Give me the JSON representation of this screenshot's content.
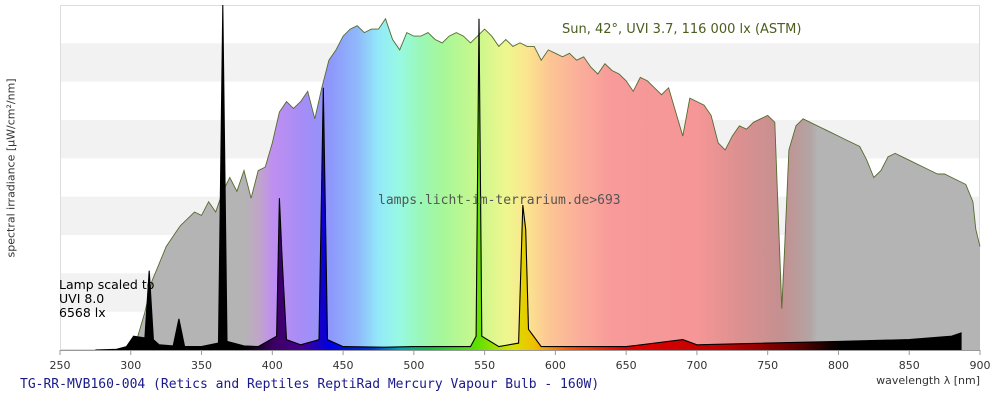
{
  "chart_data": {
    "type": "area",
    "title": "TG-RR-MVB160-004 (Retics and Reptiles ReptiRad Mercury Vapour Bulb - 160W)",
    "xlabel": "wavelength λ [nm]",
    "ylabel": "spectral irradiance [µW/cm²/nm]",
    "xlim": [
      250,
      900
    ],
    "x_ticks": [
      250,
      300,
      350,
      400,
      450,
      500,
      550,
      600,
      650,
      700,
      750,
      800,
      850,
      900
    ],
    "grid": "horizontal alternating bands",
    "sun_label": "Sun, 42°, UVI 3.7, 116 000 lx (ASTM)",
    "watermark": "lamps.licht-im-terrarium.de>693",
    "lamp_scale_note": [
      "Lamp scaled to",
      "UVI 8.0",
      "6568 lx"
    ],
    "series": [
      {
        "name": "Sun, 42°, UVI 3.7, 116 000 lx (ASTM)",
        "color": "#556b2f",
        "points": [
          [
            297,
            0.0
          ],
          [
            300,
            0.004
          ],
          [
            305,
            0.04
          ],
          [
            310,
            0.11
          ],
          [
            315,
            0.2
          ],
          [
            320,
            0.25
          ],
          [
            325,
            0.3
          ],
          [
            330,
            0.33
          ],
          [
            335,
            0.36
          ],
          [
            340,
            0.38
          ],
          [
            345,
            0.4
          ],
          [
            350,
            0.39
          ],
          [
            355,
            0.43
          ],
          [
            360,
            0.4
          ],
          [
            365,
            0.46
          ],
          [
            370,
            0.5
          ],
          [
            375,
            0.46
          ],
          [
            380,
            0.52
          ],
          [
            385,
            0.44
          ],
          [
            390,
            0.52
          ],
          [
            395,
            0.53
          ],
          [
            400,
            0.6
          ],
          [
            405,
            0.69
          ],
          [
            410,
            0.72
          ],
          [
            415,
            0.7
          ],
          [
            420,
            0.72
          ],
          [
            425,
            0.75
          ],
          [
            430,
            0.67
          ],
          [
            435,
            0.76
          ],
          [
            440,
            0.84
          ],
          [
            445,
            0.87
          ],
          [
            450,
            0.91
          ],
          [
            455,
            0.93
          ],
          [
            460,
            0.94
          ],
          [
            465,
            0.92
          ],
          [
            470,
            0.93
          ],
          [
            475,
            0.93
          ],
          [
            480,
            0.96
          ],
          [
            485,
            0.9
          ],
          [
            490,
            0.87
          ],
          [
            495,
            0.92
          ],
          [
            500,
            0.91
          ],
          [
            505,
            0.91
          ],
          [
            510,
            0.92
          ],
          [
            515,
            0.9
          ],
          [
            520,
            0.89
          ],
          [
            525,
            0.91
          ],
          [
            530,
            0.92
          ],
          [
            535,
            0.91
          ],
          [
            540,
            0.89
          ],
          [
            545,
            0.91
          ],
          [
            550,
            0.93
          ],
          [
            555,
            0.91
          ],
          [
            560,
            0.88
          ],
          [
            565,
            0.9
          ],
          [
            570,
            0.88
          ],
          [
            575,
            0.89
          ],
          [
            580,
            0.88
          ],
          [
            585,
            0.88
          ],
          [
            590,
            0.84
          ],
          [
            595,
            0.87
          ],
          [
            600,
            0.86
          ],
          [
            605,
            0.85
          ],
          [
            610,
            0.86
          ],
          [
            615,
            0.84
          ],
          [
            620,
            0.85
          ],
          [
            625,
            0.82
          ],
          [
            630,
            0.8
          ],
          [
            635,
            0.83
          ],
          [
            640,
            0.81
          ],
          [
            645,
            0.8
          ],
          [
            650,
            0.78
          ],
          [
            655,
            0.75
          ],
          [
            660,
            0.79
          ],
          [
            665,
            0.78
          ],
          [
            670,
            0.76
          ],
          [
            675,
            0.74
          ],
          [
            680,
            0.76
          ],
          [
            685,
            0.69
          ],
          [
            690,
            0.62
          ],
          [
            695,
            0.73
          ],
          [
            700,
            0.72
          ],
          [
            705,
            0.71
          ],
          [
            710,
            0.68
          ],
          [
            715,
            0.6
          ],
          [
            720,
            0.58
          ],
          [
            725,
            0.62
          ],
          [
            730,
            0.65
          ],
          [
            735,
            0.64
          ],
          [
            740,
            0.66
          ],
          [
            745,
            0.67
          ],
          [
            750,
            0.68
          ],
          [
            755,
            0.66
          ],
          [
            760,
            0.12
          ],
          [
            762,
            0.3
          ],
          [
            765,
            0.58
          ],
          [
            770,
            0.65
          ],
          [
            775,
            0.67
          ],
          [
            780,
            0.66
          ],
          [
            785,
            0.65
          ],
          [
            790,
            0.64
          ],
          [
            795,
            0.63
          ],
          [
            800,
            0.62
          ],
          [
            805,
            0.61
          ],
          [
            810,
            0.6
          ],
          [
            815,
            0.59
          ],
          [
            820,
            0.55
          ],
          [
            825,
            0.5
          ],
          [
            830,
            0.52
          ],
          [
            835,
            0.56
          ],
          [
            840,
            0.57
          ],
          [
            845,
            0.56
          ],
          [
            850,
            0.55
          ],
          [
            855,
            0.54
          ],
          [
            860,
            0.53
          ],
          [
            865,
            0.52
          ],
          [
            870,
            0.51
          ],
          [
            875,
            0.51
          ],
          [
            880,
            0.5
          ],
          [
            885,
            0.49
          ],
          [
            890,
            0.48
          ],
          [
            895,
            0.43
          ],
          [
            897,
            0.35
          ],
          [
            900,
            0.3
          ]
        ]
      },
      {
        "name": "Lamp scaled to UVI 8.0 6568 lx",
        "color": "#000000",
        "points": [
          [
            275,
            0.0
          ],
          [
            290,
            0.002
          ],
          [
            297,
            0.01
          ],
          [
            302,
            0.04
          ],
          [
            310,
            0.035
          ],
          [
            313,
            0.23
          ],
          [
            316,
            0.03
          ],
          [
            320,
            0.015
          ],
          [
            330,
            0.012
          ],
          [
            334,
            0.09
          ],
          [
            338,
            0.01
          ],
          [
            350,
            0.01
          ],
          [
            362,
            0.02
          ],
          [
            365,
            1.0
          ],
          [
            368,
            0.025
          ],
          [
            380,
            0.012
          ],
          [
            390,
            0.01
          ],
          [
            403,
            0.04
          ],
          [
            405,
            0.44
          ],
          [
            407,
            0.26
          ],
          [
            410,
            0.03
          ],
          [
            420,
            0.015
          ],
          [
            433,
            0.03
          ],
          [
            436,
            0.76
          ],
          [
            439,
            0.03
          ],
          [
            450,
            0.01
          ],
          [
            480,
            0.008
          ],
          [
            500,
            0.01
          ],
          [
            540,
            0.01
          ],
          [
            544,
            0.04
          ],
          [
            546,
            0.96
          ],
          [
            548,
            0.04
          ],
          [
            560,
            0.01
          ],
          [
            574,
            0.02
          ],
          [
            577,
            0.42
          ],
          [
            579,
            0.35
          ],
          [
            581,
            0.06
          ],
          [
            590,
            0.01
          ],
          [
            650,
            0.01
          ],
          [
            690,
            0.03
          ],
          [
            700,
            0.015
          ],
          [
            800,
            0.025
          ],
          [
            850,
            0.03
          ],
          [
            880,
            0.04
          ],
          [
            887,
            0.05
          ]
        ]
      }
    ]
  }
}
